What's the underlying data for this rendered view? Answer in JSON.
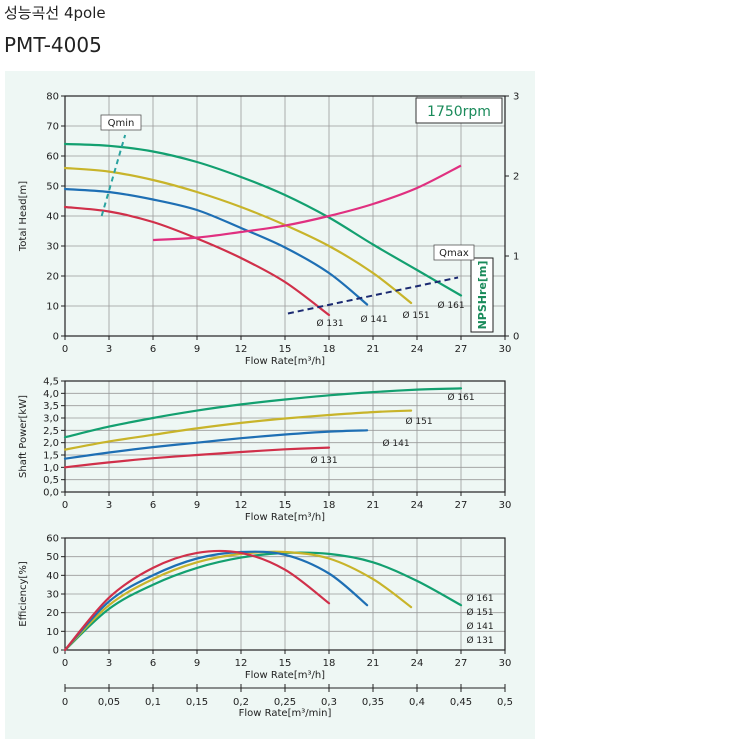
{
  "header": {
    "title": "성능곡선 4pole",
    "model": "PMT-4005"
  },
  "colors": {
    "d161": "#13a070",
    "d151": "#c8b42a",
    "d141": "#1e6fb4",
    "d131": "#d0304a",
    "npsh": "#e03080",
    "boundary": "#1b2a72",
    "qmin": "#2aa3a0",
    "rpm_text": "#1a8a5a",
    "grid": "#222222"
  },
  "chart_data": [
    {
      "id": "head",
      "type": "line",
      "ylabel": "Total Head[m]",
      "xlabel": "Flow Rate[m³/h]",
      "xlim": [
        0,
        30
      ],
      "ylim": [
        0,
        80
      ],
      "x_ticks": [
        "0",
        "3",
        "6",
        "9",
        "12",
        "15",
        "18",
        "21",
        "24",
        "27",
        "30"
      ],
      "y_ticks": [
        "0",
        "10",
        "20",
        "30",
        "40",
        "50",
        "60",
        "70",
        "80"
      ],
      "grid": true,
      "rpm": "1750rpm",
      "qmin_label": "Qmin",
      "qmax_label": "Qmax",
      "secondary_axis": {
        "label": "NPSHre[m]",
        "ylim": [
          0,
          3
        ],
        "ticks": [
          "0",
          "1",
          "2",
          "3"
        ]
      },
      "series": [
        {
          "name": "Ø 161",
          "color_key": "d161",
          "x": [
            0,
            3,
            6,
            9,
            12,
            15,
            18,
            21,
            24,
            27
          ],
          "y": [
            64,
            63.4,
            61.5,
            58,
            53,
            47,
            39.5,
            30.5,
            22,
            13.5
          ]
        },
        {
          "name": "Ø 151",
          "color_key": "d151",
          "x": [
            0,
            3,
            6,
            9,
            12,
            15,
            18,
            21,
            23.6
          ],
          "y": [
            56,
            54.8,
            52,
            48,
            43,
            37,
            30,
            21,
            11
          ]
        },
        {
          "name": "Ø 141",
          "color_key": "d141",
          "x": [
            0,
            3,
            6,
            9,
            12,
            15,
            18,
            20.6
          ],
          "y": [
            49,
            48,
            45.5,
            42,
            36,
            29.5,
            21,
            10.5
          ]
        },
        {
          "name": "Ø 131",
          "color_key": "d131",
          "x": [
            0,
            3,
            6,
            9,
            12,
            15,
            18
          ],
          "y": [
            43,
            41.5,
            38,
            32.5,
            26,
            18,
            7
          ]
        }
      ],
      "npsh": {
        "color_key": "npsh",
        "x": [
          6,
          9,
          12,
          15,
          18,
          21,
          24,
          27
        ],
        "y": [
          1.2,
          1.23,
          1.3,
          1.38,
          1.5,
          1.65,
          1.85,
          2.13
        ]
      },
      "qmin_line": {
        "x": [
          2.5,
          4.1
        ],
        "y": [
          40,
          67
        ]
      },
      "qmax_line": {
        "x": [
          15.2,
          26.8
        ],
        "y": [
          7.5,
          19.5
        ]
      },
      "end_labels": [
        "Ø 131",
        "Ø 141",
        "Ø 151",
        "Ø 161"
      ]
    },
    {
      "id": "power",
      "type": "line",
      "ylabel": "Shaft Power[kW]",
      "xlabel": "Flow Rate[m³/h]",
      "xlim": [
        0,
        30
      ],
      "ylim": [
        0,
        4.5
      ],
      "x_ticks": [
        "0",
        "3",
        "6",
        "9",
        "12",
        "15",
        "18",
        "21",
        "24",
        "27",
        "30"
      ],
      "y_ticks": [
        "0,0",
        "0,5",
        "1,0",
        "1,5",
        "2,0",
        "2,5",
        "3,0",
        "3,5",
        "4,0",
        "4,5"
      ],
      "grid": true,
      "series": [
        {
          "name": "Ø 161",
          "color_key": "d161",
          "x": [
            0,
            3,
            6,
            9,
            12,
            15,
            18,
            21,
            24,
            27
          ],
          "y": [
            2.22,
            2.65,
            3.0,
            3.3,
            3.55,
            3.75,
            3.92,
            4.05,
            4.15,
            4.2
          ]
        },
        {
          "name": "Ø 151",
          "color_key": "d151",
          "x": [
            0,
            3,
            6,
            9,
            12,
            15,
            18,
            21,
            23.6
          ],
          "y": [
            1.72,
            2.05,
            2.32,
            2.58,
            2.8,
            2.98,
            3.12,
            3.24,
            3.3
          ]
        },
        {
          "name": "Ø 141",
          "color_key": "d141",
          "x": [
            0,
            3,
            6,
            9,
            12,
            15,
            18,
            20.6
          ],
          "y": [
            1.35,
            1.6,
            1.82,
            2.0,
            2.18,
            2.33,
            2.45,
            2.5
          ]
        },
        {
          "name": "Ø 131",
          "color_key": "d131",
          "x": [
            0,
            3,
            6,
            9,
            12,
            15,
            18
          ],
          "y": [
            1.0,
            1.2,
            1.37,
            1.5,
            1.62,
            1.73,
            1.8
          ]
        }
      ],
      "end_labels": [
        "Ø 161",
        "Ø 151",
        "Ø 141",
        "Ø 131"
      ]
    },
    {
      "id": "efficiency",
      "type": "line",
      "ylabel": "Efficiency[%]",
      "xlabel": "Flow Rate[m³/h]",
      "xlim": [
        0,
        30
      ],
      "ylim": [
        0,
        60
      ],
      "x_ticks": [
        "0",
        "3",
        "6",
        "9",
        "12",
        "15",
        "18",
        "21",
        "24",
        "27",
        "30"
      ],
      "y_ticks": [
        "0",
        "10",
        "20",
        "30",
        "40",
        "50",
        "60"
      ],
      "grid": true,
      "series": [
        {
          "name": "Ø 161",
          "color_key": "d161",
          "x": [
            0,
            3,
            6,
            9,
            12,
            15,
            18,
            21,
            24,
            27
          ],
          "y": [
            0,
            22,
            35,
            44,
            49.5,
            52,
            51.5,
            47,
            37,
            24
          ]
        },
        {
          "name": "Ø 151",
          "color_key": "d151",
          "x": [
            0,
            3,
            6,
            9,
            12,
            15,
            18,
            21,
            23.6
          ],
          "y": [
            0,
            24,
            38,
            47,
            51.5,
            52.5,
            49,
            38,
            23
          ]
        },
        {
          "name": "Ø 141",
          "color_key": "d141",
          "x": [
            0,
            3,
            6,
            9,
            12,
            15,
            18,
            20.6
          ],
          "y": [
            0,
            26,
            40,
            49,
            52.5,
            51,
            41,
            24
          ]
        },
        {
          "name": "Ø 131",
          "color_key": "d131",
          "x": [
            0,
            3,
            6,
            9,
            12,
            15,
            18
          ],
          "y": [
            0,
            28,
            44,
            52,
            52,
            43,
            25
          ]
        }
      ],
      "legend": [
        "Ø 161",
        "Ø 151",
        "Ø 141",
        "Ø 131"
      ],
      "secondary_x_axis": {
        "label": "Flow Rate[m³/min]",
        "ticks": [
          "0",
          "0,05",
          "0,1",
          "0,15",
          "0,2",
          "0,25",
          "0,3",
          "0,35",
          "0,4",
          "0,45",
          "0,5"
        ]
      }
    }
  ]
}
